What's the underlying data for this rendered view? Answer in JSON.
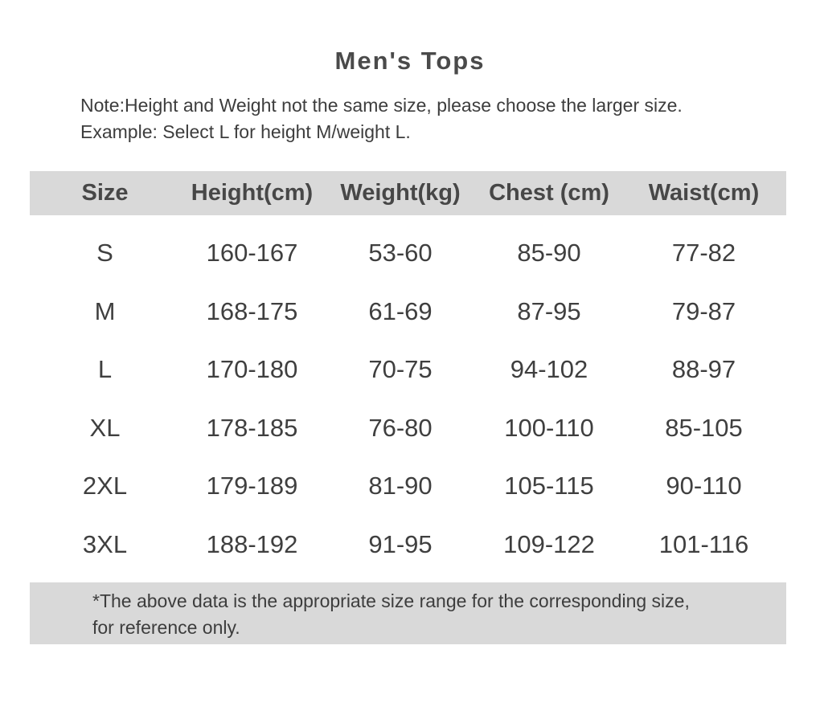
{
  "page": {
    "title": "Men's Tops",
    "note_line1": "Note:Height and Weight not the same size, please choose the larger size.",
    "note_line2": "Example: Select L for height M/weight L.",
    "footer_line1": "*The above data is the appropriate size range for the corresponding size,",
    "footer_line2": "for reference only."
  },
  "colors": {
    "band_background": "#d9d9d9",
    "title_text": "#4a4a4a",
    "body_text": "#3f3f3f"
  },
  "table": {
    "columns": [
      "Size",
      "Height(cm)",
      "Weight(kg)",
      "Chest (cm)",
      "Waist(cm)"
    ],
    "rows": [
      [
        "S",
        "160-167",
        "53-60",
        "85-90",
        "77-82"
      ],
      [
        "M",
        "168-175",
        "61-69",
        "87-95",
        "79-87"
      ],
      [
        "L",
        "170-180",
        "70-75",
        "94-102",
        "88-97"
      ],
      [
        "XL",
        "178-185",
        "76-80",
        "100-110",
        "85-105"
      ],
      [
        "2XL",
        "179-189",
        "81-90",
        "105-115",
        "90-110"
      ],
      [
        "3XL",
        "188-192",
        "91-95",
        "109-122",
        "101-116"
      ]
    ]
  }
}
